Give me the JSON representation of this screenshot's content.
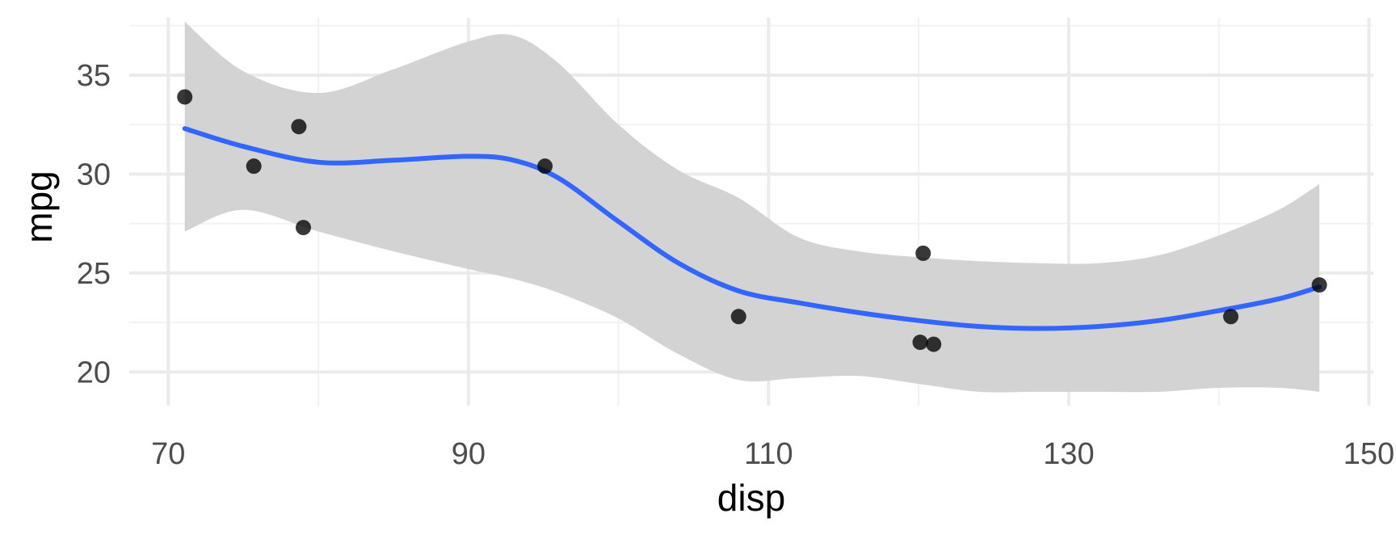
{
  "chart_data": {
    "type": "scatter",
    "title": "",
    "xlabel": "disp",
    "ylabel": "mpg",
    "xlim": [
      67.4,
      150.3
    ],
    "ylim": [
      18.3,
      37.9
    ],
    "x_ticks": [
      70,
      90,
      110,
      130,
      150
    ],
    "x_tick_labels": [
      "70",
      "90",
      "110",
      "130",
      "150"
    ],
    "y_ticks": [
      20,
      25,
      30,
      35
    ],
    "y_tick_labels": [
      "20",
      "25",
      "30",
      "35"
    ],
    "grid": true,
    "legend": "none",
    "colors": {
      "points": "#000000",
      "smooth_line": "#3366FF",
      "confidence_band": "#d3d3d3",
      "grid_major": "#ebebeb",
      "grid_minor": "#f2f2f2"
    },
    "points": [
      {
        "x": 71.1,
        "y": 33.9
      },
      {
        "x": 75.7,
        "y": 30.4
      },
      {
        "x": 78.7,
        "y": 32.4
      },
      {
        "x": 79.0,
        "y": 27.3
      },
      {
        "x": 95.1,
        "y": 30.4
      },
      {
        "x": 108.0,
        "y": 22.8
      },
      {
        "x": 120.1,
        "y": 21.5
      },
      {
        "x": 120.3,
        "y": 26.0
      },
      {
        "x": 121.0,
        "y": 21.4
      },
      {
        "x": 140.8,
        "y": 22.8
      },
      {
        "x": 146.7,
        "y": 24.4
      }
    ],
    "smooth": {
      "method": "loess",
      "x": [
        71.1,
        75,
        80,
        85,
        90,
        93,
        96,
        100,
        104,
        108,
        112,
        116,
        120,
        124,
        128,
        132,
        136,
        140,
        144,
        146.7
      ],
      "y": [
        32.3,
        31.4,
        30.6,
        30.7,
        30.9,
        30.7,
        29.8,
        27.6,
        25.5,
        24.1,
        23.5,
        23.0,
        22.6,
        22.3,
        22.2,
        22.3,
        22.6,
        23.1,
        23.7,
        24.3
      ],
      "lower": [
        27.1,
        28.2,
        27.1,
        26.1,
        25.2,
        24.7,
        24.0,
        22.7,
        20.9,
        19.6,
        19.7,
        19.8,
        19.4,
        19.0,
        19.0,
        19.0,
        19.0,
        19.2,
        19.2,
        19.0
      ],
      "upper": [
        37.7,
        35.2,
        34.1,
        35.3,
        36.7,
        37.0,
        35.6,
        32.5,
        30.2,
        28.8,
        26.8,
        26.1,
        25.8,
        25.6,
        25.5,
        25.5,
        25.9,
        26.9,
        28.2,
        29.5
      ]
    }
  }
}
